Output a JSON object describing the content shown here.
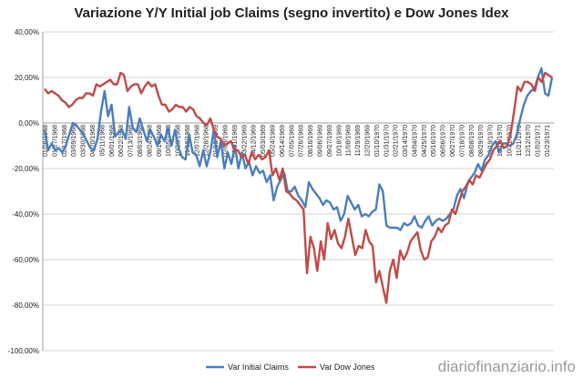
{
  "chart_data": {
    "type": "line",
    "title": "Variazione Y/Y Initial job Claims (segno invertito) e Dow Jones Idex",
    "xlabel": "",
    "ylabel": "",
    "ylim": [
      -100,
      40
    ],
    "y_ticks": [
      "40,00%",
      "20,00%",
      "0,00%",
      "-20,00%",
      "-40,00%",
      "-60,00%",
      "-80,00%",
      "-100,00%"
    ],
    "x_tick_labels": [
      "01/06/1968",
      "01/27/1968",
      "02/17/1968",
      "03/09/1968",
      "03/30/1968",
      "04/20/1968",
      "05/11/1968",
      "06/01/1968",
      "06/22/1968",
      "07/13/1968",
      "08/03/1968",
      "08/24/1968",
      "09/14/1968",
      "10/05/1968",
      "10/26/1968",
      "11/16/1968",
      "12/07/1968",
      "12/28/1968",
      "01/18/1969",
      "02/08/1969",
      "03/01/1969",
      "03/22/1969",
      "04/12/1969",
      "05/03/1969",
      "05/24/1969",
      "06/14/1969",
      "07/05/1969",
      "07/26/1969",
      "08/16/1969",
      "09/06/1969",
      "09/27/1969",
      "10/18/1969",
      "11/08/1969",
      "11/29/1969",
      "12/20/1969",
      "01/10/1970",
      "01/31/1970",
      "02/21/1970",
      "03/14/1970",
      "04/04/1970",
      "04/25/1970",
      "05/16/1970",
      "06/06/1970",
      "06/27/1970",
      "07/18/1970",
      "08/08/1970",
      "08/29/1970",
      "09/19/1970",
      "10/10/1970",
      "10/31/1970",
      "11/21/1970",
      "12/12/1970",
      "01/02/1971",
      "01/23/1971"
    ],
    "grid": true,
    "legend_position": "bottom",
    "series": [
      {
        "name": "Var Initial Claims",
        "color": "#4a7ebb",
        "values": [
          -3,
          -12,
          -9,
          -12,
          -11,
          -13,
          -10,
          -5,
          0,
          -1,
          -3,
          -5,
          -8,
          -11,
          -12,
          -7,
          5,
          14,
          3,
          8,
          -6,
          -4,
          -3,
          -7,
          7,
          -2,
          -4,
          2,
          -3,
          -8,
          -3,
          -6,
          -10,
          -5,
          -8,
          -2,
          -10,
          -3,
          -11,
          -15,
          -16,
          -5,
          -13,
          -14,
          -19,
          -12,
          -19,
          -13,
          -3,
          -15,
          -8,
          -20,
          -13,
          -18,
          -10,
          -20,
          -13,
          -20,
          -17,
          -23,
          -19,
          -22,
          -21,
          -26,
          -23,
          -34,
          -28,
          -25,
          -22,
          -30,
          -30,
          -28,
          -32,
          -34,
          -37,
          -26,
          -29,
          -31,
          -33,
          -36,
          -34,
          -35,
          -38,
          -37,
          -43,
          -40,
          -32,
          -35,
          -38,
          -36,
          -41,
          -40,
          -41,
          -39,
          -38,
          -27,
          -30,
          -45,
          -46,
          -46,
          -46,
          -47,
          -44,
          -45,
          -44,
          -41,
          -45,
          -46,
          -43,
          -41,
          -45,
          -43,
          -42,
          -43,
          -42,
          -40,
          -38,
          -32,
          -29,
          -33,
          -27,
          -24,
          -22,
          -18,
          -21,
          -16,
          -14,
          -10,
          -8,
          -13,
          -9,
          -9,
          -10,
          -9,
          -5,
          2,
          8,
          12,
          14,
          15,
          20,
          24,
          13,
          12,
          20
        ],
        "values_note": ""
      },
      {
        "name": "Var Dow Jones",
        "color": "#be4b48",
        "values": [
          15,
          13,
          14,
          13,
          12,
          10,
          9,
          7,
          8,
          10,
          11,
          11,
          13,
          13,
          12,
          17,
          16,
          17,
          18,
          19,
          17,
          17,
          22,
          21,
          14,
          16,
          17,
          17,
          13,
          16,
          18,
          16,
          17,
          12,
          8,
          8,
          5,
          6,
          8,
          7,
          7,
          5,
          7,
          6,
          3,
          2,
          0,
          -1,
          2,
          -3,
          -6,
          -7,
          -10,
          -9,
          -8,
          -12,
          -12,
          -15,
          -14,
          -18,
          -13,
          -16,
          -14,
          -16,
          -15,
          -12,
          -23,
          -20,
          -25,
          -20,
          -30,
          -31,
          -33,
          -34,
          -36,
          -38,
          -66,
          -50,
          -55,
          -65,
          -52,
          -60,
          -44,
          -51,
          -47,
          -53,
          -55,
          -50,
          -42,
          -50,
          -58,
          -54,
          -55,
          -47,
          -52,
          -54,
          -70,
          -65,
          -72,
          -79,
          -65,
          -60,
          -68,
          -56,
          -60,
          -57,
          -52,
          -50,
          -48,
          -56,
          -60,
          -59,
          -52,
          -50,
          -46,
          -48,
          -45,
          -44,
          -38,
          -40,
          -35,
          -30,
          -28,
          -25,
          -27,
          -23,
          -24,
          -21,
          -18,
          -16,
          -12,
          -10,
          -8,
          -11,
          -10,
          -5,
          5,
          16,
          14,
          18,
          18,
          17,
          14,
          20,
          18,
          22,
          21,
          20
        ]
      }
    ]
  },
  "watermark": "diariofinanziario.info"
}
